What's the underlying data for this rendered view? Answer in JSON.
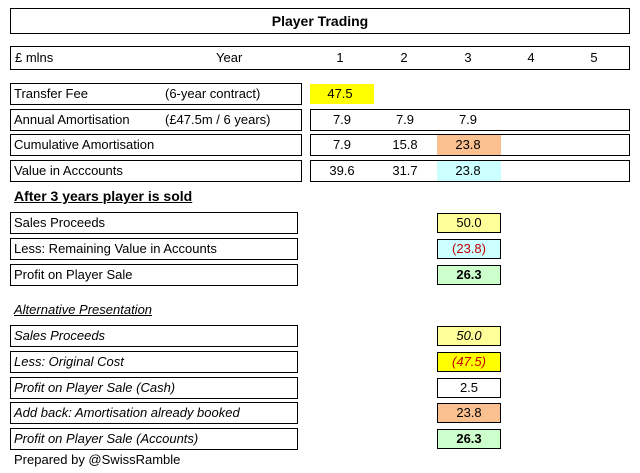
{
  "title": "Player Trading",
  "header": {
    "unit_label": "£ mlns",
    "year_label": "Year",
    "years": [
      "1",
      "2",
      "3",
      "4",
      "5"
    ]
  },
  "rows": {
    "transfer_fee": {
      "label": "Transfer Fee",
      "note": "(6-year contract)",
      "y1": "47.5"
    },
    "annual_amort": {
      "label": "Annual Amortisation",
      "note": "(£47.5m / 6 years)",
      "y1": "7.9",
      "y2": "7.9",
      "y3": "7.9"
    },
    "cum_amort": {
      "label": "Cumulative Amortisation",
      "y1": "7.9",
      "y2": "15.8",
      "y3": "23.8"
    },
    "value_accounts": {
      "label": "Value in Acccounts",
      "y1": "39.6",
      "y2": "31.7",
      "y3": "23.8"
    }
  },
  "sold_heading": "After 3 years player is sold",
  "sale": {
    "proceeds": {
      "label": "Sales Proceeds",
      "value": "50.0"
    },
    "remaining": {
      "label": "Less: Remaining Value in Accounts",
      "value": "(23.8)"
    },
    "profit": {
      "label": "Profit on Player Sale",
      "value": "26.3"
    }
  },
  "alt_heading": "Alternative Presentation",
  "alt": {
    "proceeds": {
      "label": "Sales Proceeds",
      "value": "50.0"
    },
    "original_cost": {
      "label": "Less: Original Cost",
      "value": "(47.5)"
    },
    "profit_cash": {
      "label": "Profit on Player Sale (Cash)",
      "value": "2.5"
    },
    "addback": {
      "label": "Add back: Amortisation already booked",
      "value": "23.8"
    },
    "profit_accounts": {
      "label": "Profit on Player Sale (Accounts)",
      "value": "26.3"
    }
  },
  "footer": "Prepared by @SwissRamble",
  "colors": {
    "yellow": "#ffff00",
    "light_yellow": "#ffff99",
    "peach": "#fac090",
    "cyan": "#ccffff",
    "green": "#ccffcc",
    "red_text": "#c00000"
  }
}
